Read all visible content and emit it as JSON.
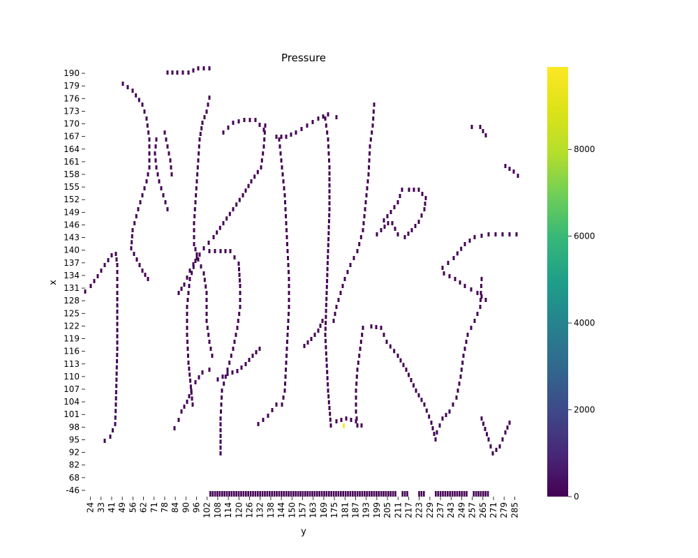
{
  "chart_data": {
    "type": "heatmap",
    "title": "Pressure",
    "xlabel": "y",
    "ylabel": "x",
    "colormap": "viridis",
    "colorbar": {
      "min": 0,
      "max": 9900,
      "ticks": [
        0,
        2000,
        4000,
        6000,
        8000
      ]
    },
    "x_ticks": [
      "24",
      "33",
      "41",
      "49",
      "56",
      "62",
      "71",
      "78",
      "84",
      "90",
      "96",
      "102",
      "108",
      "114",
      "120",
      "126",
      "132",
      "138",
      "144",
      "150",
      "157",
      "163",
      "169",
      "175",
      "181",
      "187",
      "193",
      "199",
      "205",
      "211",
      "217",
      "223",
      "229",
      "237",
      "243",
      "249",
      "257",
      "265",
      "271",
      "279",
      "285"
    ],
    "y_ticks": [
      "190",
      "179",
      "176",
      "173",
      "170",
      "167",
      "164",
      "161",
      "158",
      "155",
      "152",
      "149",
      "146",
      "143",
      "140",
      "137",
      "134",
      "131",
      "128",
      "125",
      "122",
      "119",
      "116",
      "113",
      "110",
      "107",
      "104",
      "101",
      "98",
      "95",
      "92",
      "82",
      "68",
      "-46"
    ],
    "high_value_cell": {
      "y": 181,
      "x": 98,
      "value": 9900
    },
    "low_value_cells_note": "",
    "base_value": 0
  }
}
